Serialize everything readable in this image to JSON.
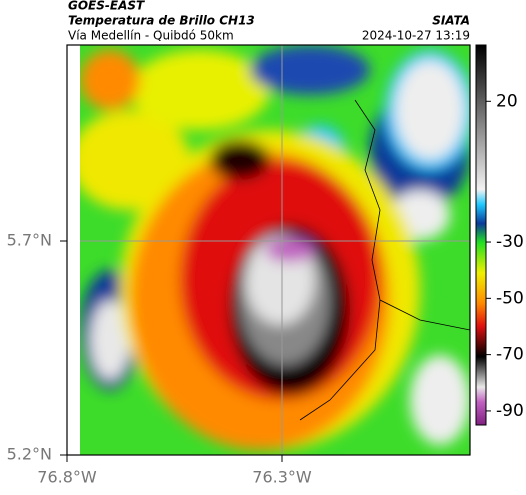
{
  "header": {
    "source": "GOES-EAST",
    "title": "Temperatura de Brillo CH13",
    "subtitle": "Vía Medellín - Quibdó 50km",
    "org": "SIATA",
    "timestamp": "2024-10-27 13:19"
  },
  "map": {
    "lat_labels": [
      "5.7°N",
      "5.2°N"
    ],
    "lon_labels": [
      "76.8°W",
      "76.3°W"
    ]
  },
  "colorbar": {
    "lim": [
      40,
      -95
    ],
    "ticks": [
      20,
      -30,
      -50,
      -70,
      -90
    ]
  }
}
